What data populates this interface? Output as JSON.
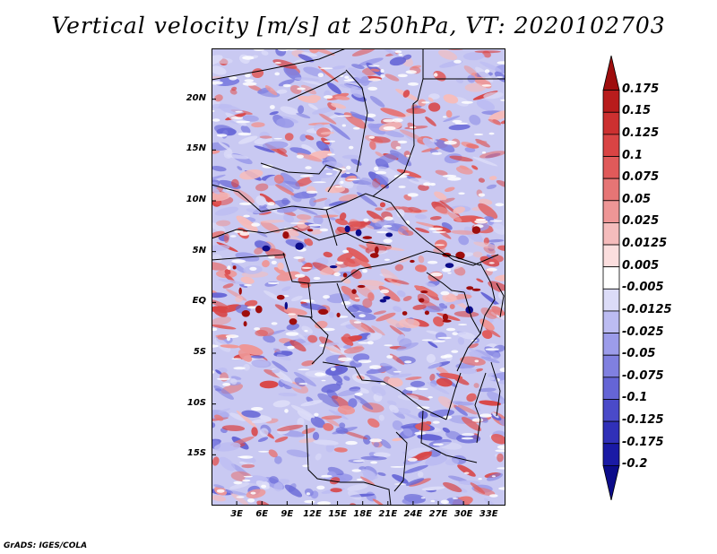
{
  "title": "Vertical velocity [m/s] at 250hPa, VT: 2020102703",
  "credit": "GrADS: IGES/COLA",
  "map": {
    "lon_range": [
      0,
      35
    ],
    "lat_range": [
      -20,
      25
    ],
    "lat_ticks": [
      "20N",
      "15N",
      "10N",
      "5N",
      "EQ",
      "5S",
      "10S",
      "15S"
    ],
    "lat_tick_values": [
      20,
      15,
      10,
      5,
      0,
      -5,
      -10,
      -15
    ],
    "lon_ticks": [
      "3E",
      "6E",
      "9E",
      "12E",
      "15E",
      "18E",
      "21E",
      "24E",
      "27E",
      "30E",
      "33E"
    ],
    "lon_tick_values": [
      3,
      6,
      9,
      12,
      15,
      18,
      21,
      24,
      27,
      30,
      33
    ]
  },
  "colorbar": {
    "labels": [
      "0.175",
      "0.15",
      "0.125",
      "0.1",
      "0.075",
      "0.05",
      "0.025",
      "0.0125",
      "0.005",
      "-0.005",
      "-0.0125",
      "-0.025",
      "-0.05",
      "-0.075",
      "-0.1",
      "-0.125",
      "-0.175",
      "-0.2"
    ],
    "colors": [
      "#9e0d0d",
      "#b81c1c",
      "#cc3030",
      "#d94444",
      "#e05a5a",
      "#e67575",
      "#ee9696",
      "#f5bcbc",
      "#fbdede",
      "#ffffff",
      "#dcdcf8",
      "#bcbcf2",
      "#9c9cea",
      "#8080e0",
      "#6565d6",
      "#4a4ac9",
      "#3030b8",
      "#1a1aa5",
      "#0c0c8a"
    ]
  },
  "style": {
    "red": "#e06060",
    "blue": "#6a6ae0",
    "background": "#ffffff"
  }
}
